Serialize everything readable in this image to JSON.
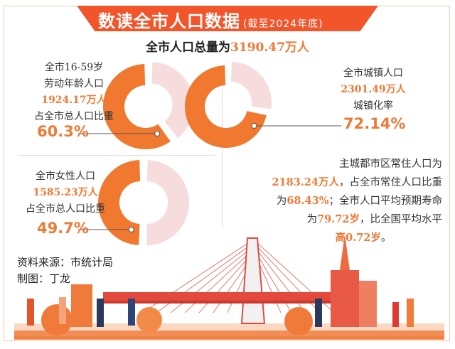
{
  "header": {
    "title": "数读全市人口数据",
    "subtitle": "(截至2024年底)"
  },
  "total": {
    "label": "全市人口总量为",
    "value": "3190.47万人"
  },
  "chart_data": [
    {
      "type": "pie",
      "label_lines": [
        "全市16-59岁",
        "劳动年龄人口"
      ],
      "value_text": "1924.17万人",
      "share_label": "占全市总人口比重",
      "percent_text": "60.3%",
      "values": [
        60.3,
        39.7
      ]
    },
    {
      "type": "pie",
      "label_lines": [
        "全市城镇人口"
      ],
      "value_text": "2301.49万人",
      "share_label": "城镇化率",
      "percent_text": "72.14%",
      "values": [
        72.14,
        27.86
      ]
    },
    {
      "type": "pie",
      "label_lines": [
        "全市女性人口"
      ],
      "value_text": "1585.23万人",
      "share_label": "占全市总人口比重",
      "percent_text": "49.7%",
      "values": [
        49.7,
        50.3
      ]
    }
  ],
  "colors": {
    "main": "#f0782f",
    "rest": "#f6dcdc",
    "accent": "#f2552a"
  },
  "note": {
    "p1": "主城都市区常住人口为",
    "v1": "2183.24万人",
    "p2": "，占全市常住人口比重",
    "p3": "为",
    "v2": "68.43%",
    "p4": "；全市人口平均预期寿命",
    "p5": "为",
    "v3": "79.72岁",
    "p6": "，比全国平均水平",
    "v4": "高0.72岁",
    "p7": "。"
  },
  "footer": {
    "source": "资料来源：市统计局",
    "author": "制图：丁龙"
  }
}
